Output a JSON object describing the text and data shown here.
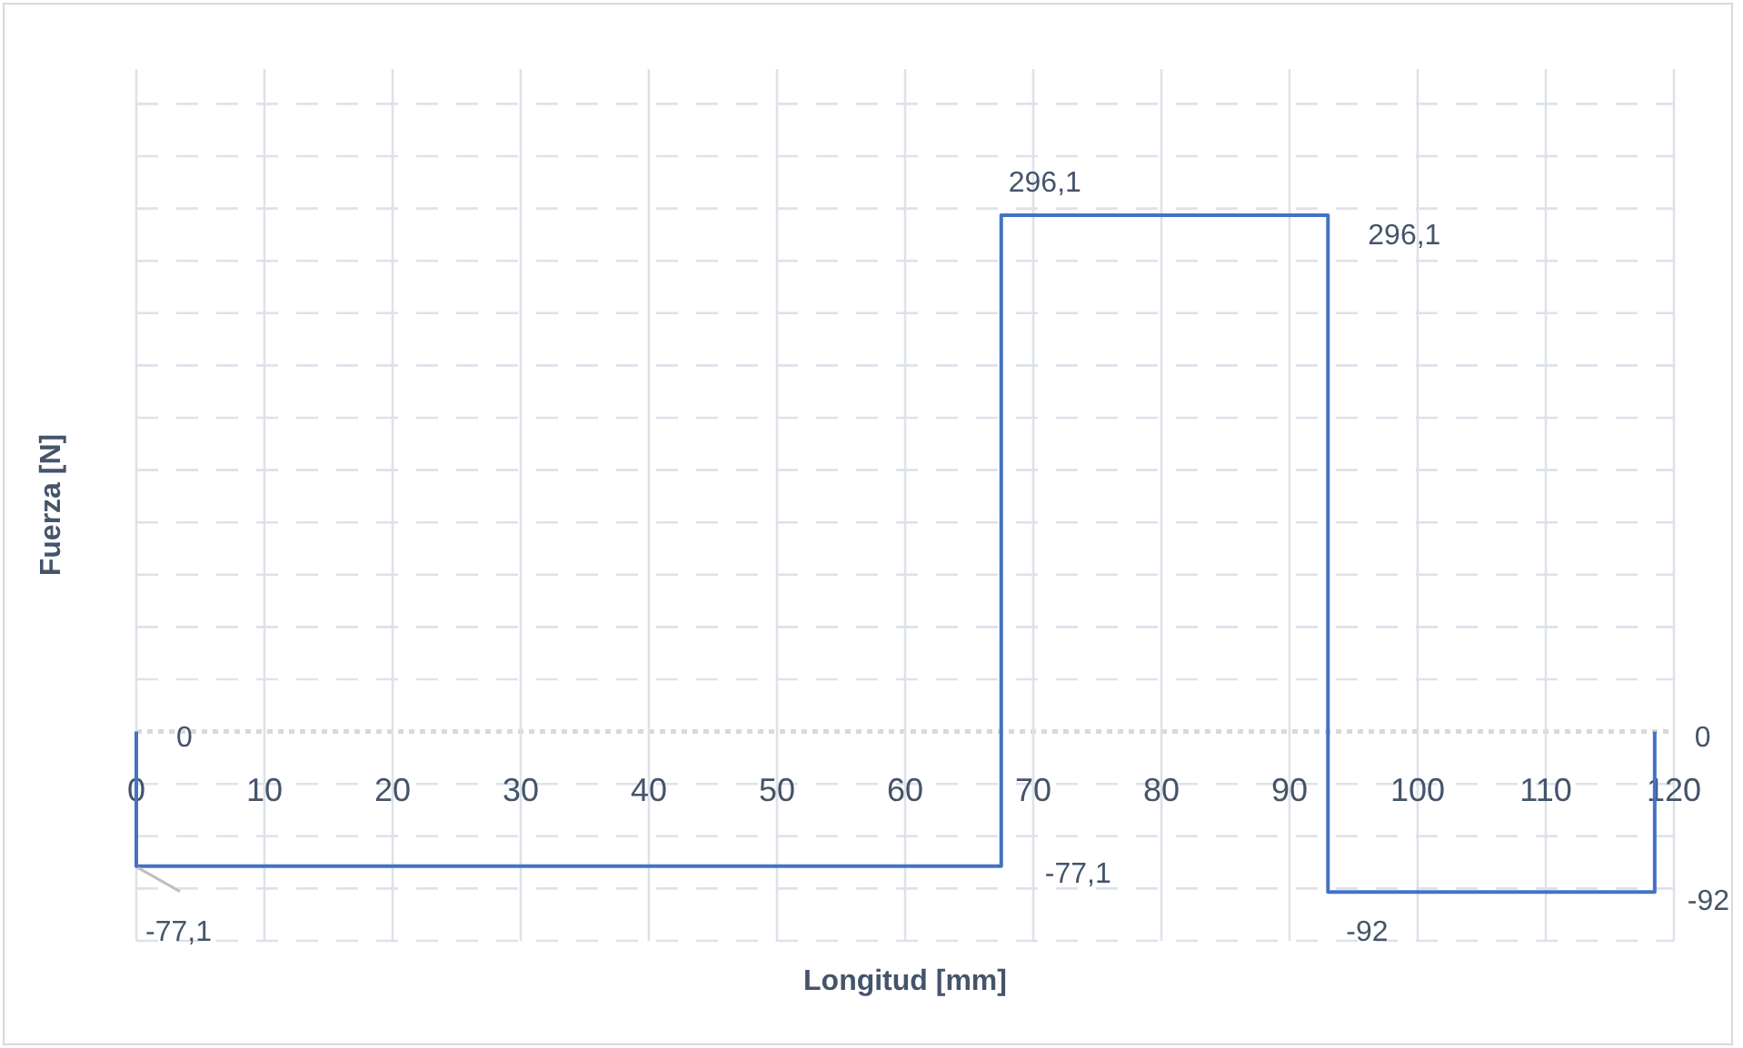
{
  "chart_data": {
    "type": "line",
    "xlabel": "Longitud [mm]",
    "ylabel": "Fuerza [N]",
    "x": [
      0,
      0,
      67.5,
      67.5,
      93,
      93,
      118.5,
      118.5
    ],
    "series": [
      {
        "color": "#4472c4",
        "values": [
          0,
          -77.1,
          -77.1,
          296.1,
          296.1,
          -92,
          -92,
          0
        ],
        "value_labels": [
          "0",
          "-77,1",
          "-77,1",
          "296,1",
          "296,1",
          "-92",
          "-92",
          "0"
        ]
      }
    ],
    "xlim": [
      0,
      120
    ],
    "xticks": [
      0,
      10,
      20,
      30,
      40,
      50,
      60,
      70,
      80,
      90,
      100,
      110,
      120
    ],
    "ylim": [
      -120,
      380
    ],
    "yticks": [
      {
        "value": -120,
        "label": null
      },
      {
        "value": -90,
        "label": null
      },
      {
        "value": -60,
        "label": null
      },
      {
        "value": -30,
        "label": null
      },
      {
        "value": 0,
        "label": null
      },
      {
        "value": 30,
        "label": null
      },
      {
        "value": 60,
        "label": null
      },
      {
        "value": 90,
        "label": null
      },
      {
        "value": 120,
        "label": null
      },
      {
        "value": 150,
        "label": null
      },
      {
        "value": 180,
        "label": null
      },
      {
        "value": 210,
        "label": null
      },
      {
        "value": 240,
        "label": null
      },
      {
        "value": 270,
        "label": null
      },
      {
        "value": 300,
        "label": null
      },
      {
        "value": 330,
        "label": null
      },
      {
        "value": 360,
        "label": null
      }
    ],
    "grid": true,
    "tick_labels": "x",
    "marker": "none",
    "line_style": "solid",
    "ref_lines": [
      {
        "axis": "y",
        "value": 0,
        "color": "#d9d9d9",
        "line_style": "dotted"
      }
    ]
  }
}
